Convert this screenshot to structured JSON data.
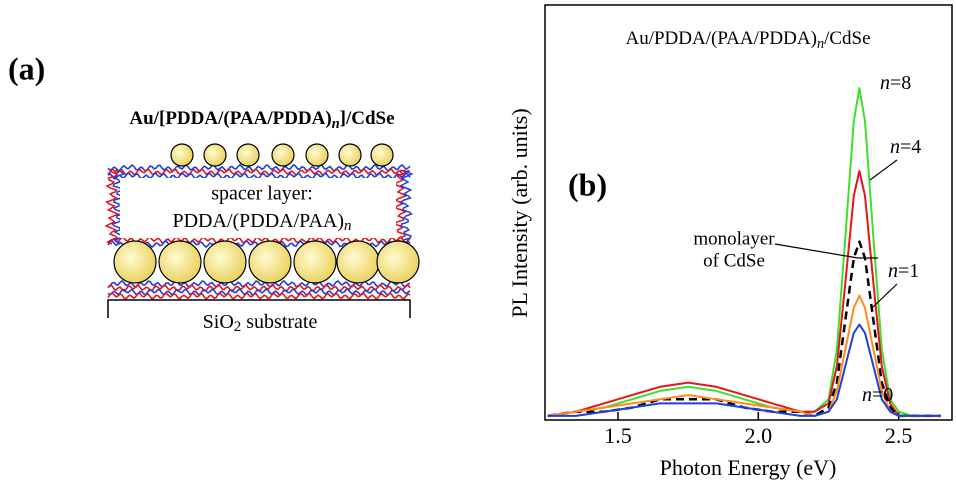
{
  "diagram": {
    "label": "(a)",
    "title": "Au/[PDDA/(PAA/PDDA)n]/CdSe",
    "spacer": [
      "spacer layer:",
      "PDDA/(PDDA/PAA)n"
    ],
    "substrate": "SiO2 substrate"
  },
  "chart_data": {
    "type": "line",
    "panel_label": "(b)",
    "title": "Au/PDDA/(PAA/PDDA)n/CdSe",
    "x_label": "Photon Energy (eV)",
    "y_label": "PL Intensity (arb. units)",
    "x": [
      1.25,
      1.35,
      1.45,
      1.55,
      1.65,
      1.75,
      1.85,
      1.95,
      2.05,
      2.15,
      2.2,
      2.25,
      2.28,
      2.31,
      2.34,
      2.36,
      2.38,
      2.41,
      2.44,
      2.47,
      2.5,
      2.55,
      2.6,
      2.65
    ],
    "xlim": [
      1.24,
      2.69
    ],
    "xticks": [
      1.5,
      {
        "value": 2,
        "label": "2.0"
      },
      2.5
    ],
    "ylim": [
      0,
      1
    ],
    "series": [
      {
        "name": "n=8",
        "color": "#3fdf2b",
        "values": [
          0.01,
          0.02,
          0.03,
          0.05,
          0.07,
          0.08,
          0.07,
          0.05,
          0.03,
          0.02,
          0.02,
          0.05,
          0.17,
          0.44,
          0.72,
          0.8,
          0.72,
          0.44,
          0.17,
          0.05,
          0.02,
          0.01,
          0.01,
          0.01
        ]
      },
      {
        "name": "n=4",
        "color": "#e8141c",
        "values": [
          0.01,
          0.02,
          0.04,
          0.06,
          0.08,
          0.09,
          0.08,
          0.06,
          0.04,
          0.02,
          0.02,
          0.04,
          0.13,
          0.33,
          0.54,
          0.6,
          0.54,
          0.33,
          0.13,
          0.04,
          0.01,
          0.01,
          0.01,
          0.01
        ]
      },
      {
        "name": [
          "monolayer",
          "of CdSe"
        ],
        "color": "#000000",
        "linestyle": "dashed",
        "values": [
          0.01,
          0.02,
          0.02,
          0.03,
          0.05,
          0.05,
          0.05,
          0.03,
          0.02,
          0.02,
          0.01,
          0.03,
          0.09,
          0.24,
          0.39,
          0.43,
          0.39,
          0.24,
          0.09,
          0.03,
          0.01,
          0.01,
          0.01,
          0.01
        ]
      },
      {
        "name": "n=1",
        "color": "#ff8c1a",
        "values": [
          0.01,
          0.02,
          0.03,
          0.04,
          0.05,
          0.06,
          0.05,
          0.04,
          0.03,
          0.02,
          0.01,
          0.02,
          0.07,
          0.17,
          0.27,
          0.3,
          0.27,
          0.17,
          0.07,
          0.02,
          0.01,
          0.01,
          0.01,
          0.01
        ]
      },
      {
        "name": "n=0",
        "color": "#1e3fdc",
        "values": [
          0.01,
          0.01,
          0.02,
          0.03,
          0.04,
          0.04,
          0.04,
          0.03,
          0.02,
          0.01,
          0.01,
          0.02,
          0.05,
          0.13,
          0.21,
          0.23,
          0.21,
          0.13,
          0.05,
          0.02,
          0.01,
          0.01,
          0.01,
          0.01
        ]
      }
    ]
  }
}
